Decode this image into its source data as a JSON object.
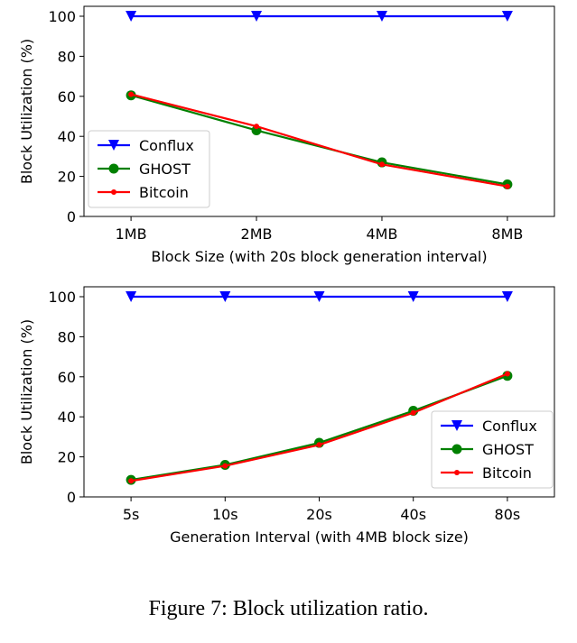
{
  "caption": "Figure 7: Block utilization ratio.",
  "colors": {
    "conflux": "#0000ff",
    "ghost": "#008000",
    "bitcoin": "#ff0000"
  },
  "chart_data": [
    {
      "type": "line",
      "title": "",
      "xlabel": "Block Size (with 20s block generation interval)",
      "ylabel": "Block Utilization (%)",
      "categories": [
        "1MB",
        "2MB",
        "4MB",
        "8MB"
      ],
      "ylim": [
        0,
        100
      ],
      "yticks": [
        "0",
        "20",
        "40",
        "60",
        "80",
        "100"
      ],
      "grid": false,
      "legend": "center-left",
      "series": [
        {
          "name": "Conflux",
          "marker": "triangle-down",
          "color": "#0000ff",
          "values": [
            100,
            100,
            100,
            100
          ]
        },
        {
          "name": "GHOST",
          "marker": "circle",
          "color": "#008000",
          "values": [
            60.5,
            43,
            27,
            16
          ]
        },
        {
          "name": "Bitcoin",
          "marker": "dot",
          "color": "#ff0000",
          "values": [
            61,
            45,
            26,
            15
          ]
        }
      ]
    },
    {
      "type": "line",
      "title": "",
      "xlabel": "Generation Interval (with 4MB block size)",
      "ylabel": "Block Utilization (%)",
      "categories": [
        "5s",
        "10s",
        "20s",
        "40s",
        "80s"
      ],
      "ylim": [
        0,
        100
      ],
      "yticks": [
        "0",
        "20",
        "40",
        "60",
        "80",
        "100"
      ],
      "grid": false,
      "legend": "lower-right",
      "series": [
        {
          "name": "Conflux",
          "marker": "triangle-down",
          "color": "#0000ff",
          "values": [
            100,
            100,
            100,
            100,
            100
          ]
        },
        {
          "name": "GHOST",
          "marker": "circle",
          "color": "#008000",
          "values": [
            8.5,
            16,
            27,
            43,
            60.5
          ]
        },
        {
          "name": "Bitcoin",
          "marker": "dot",
          "color": "#ff0000",
          "values": [
            8,
            15.5,
            26,
            42,
            61.5
          ]
        }
      ]
    }
  ]
}
